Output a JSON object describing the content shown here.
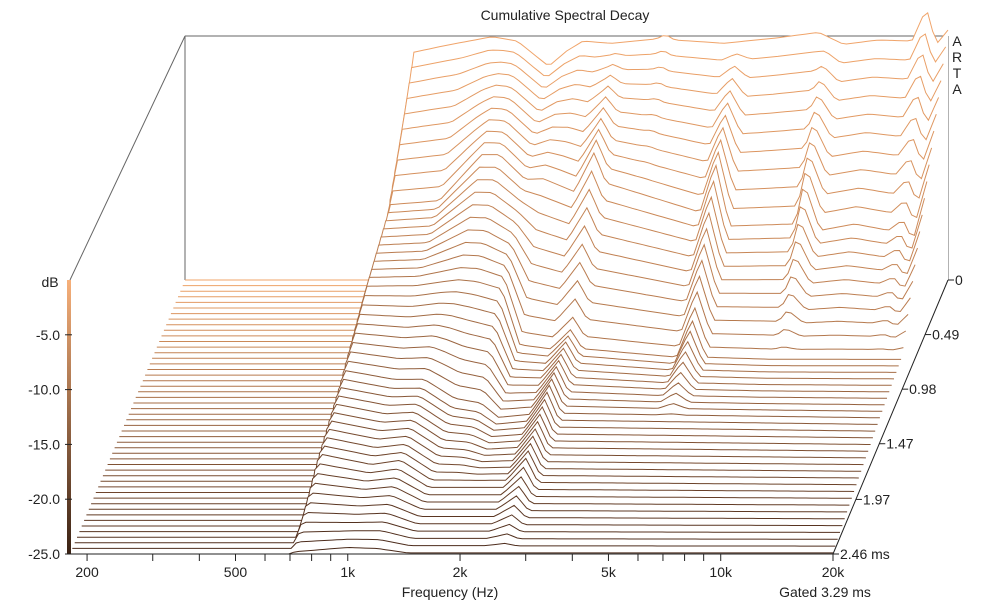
{
  "chart_data": {
    "type": "waterfall",
    "title": "Cumulative Spectral Decay",
    "xlabel": "Frequency (Hz)",
    "ylabel": "dB",
    "zlabel": "",
    "x_scale": "log",
    "xlim": [
      180,
      20000
    ],
    "ylim": [
      -25,
      0
    ],
    "x_ticks": [
      {
        "value": 200,
        "label": "200"
      },
      {
        "value": 500,
        "label": "500"
      },
      {
        "value": 1000,
        "label": "1k"
      },
      {
        "value": 2000,
        "label": "2k"
      },
      {
        "value": 5000,
        "label": "5k"
      },
      {
        "value": 10000,
        "label": "10k"
      },
      {
        "value": 20000,
        "label": "20k"
      }
    ],
    "y_ticks": [
      {
        "value": -5,
        "label": "-5.0"
      },
      {
        "value": -10,
        "label": "-10.0"
      },
      {
        "value": -15,
        "label": "-15.0"
      },
      {
        "value": -20,
        "label": "-20.0"
      },
      {
        "value": -25,
        "label": "-25.0"
      }
    ],
    "time_ticks": [
      {
        "value": 0,
        "label": "0"
      },
      {
        "value": 0.49,
        "label": "0.49"
      },
      {
        "value": 0.98,
        "label": "0.98"
      },
      {
        "value": 1.47,
        "label": "1.47"
      },
      {
        "value": 1.97,
        "label": "1.97"
      },
      {
        "value": 2.46,
        "label": "2.46 ms"
      }
    ],
    "time_range_ms": [
      0,
      2.46
    ],
    "slice_count": 50,
    "gate_text": "Gated 3.29 ms",
    "watermark": "ARTA",
    "colors": {
      "front": "#4a2a1a",
      "back": "#f0a46a",
      "axis": "#222222",
      "frame": "#666666"
    },
    "series": [
      {
        "time_ms": 0,
        "points": [
          [
            700,
            -25
          ],
          [
            720,
            -4.3
          ],
          [
            900,
            -3.6
          ],
          [
            1200,
            -2.8
          ],
          [
            1400,
            -3.2
          ],
          [
            1700,
            -5.5
          ],
          [
            1900,
            -4.1
          ],
          [
            2100,
            -3.2
          ],
          [
            2500,
            -3.4
          ],
          [
            3300,
            -3.0
          ],
          [
            3500,
            -2.6
          ],
          [
            3700,
            -3.1
          ],
          [
            5000,
            -3.4
          ],
          [
            7000,
            -2.9
          ],
          [
            9000,
            -2.4
          ],
          [
            10500,
            -3.5
          ],
          [
            13000,
            -3.1
          ],
          [
            16000,
            -3.2
          ],
          [
            17500,
            -0.2
          ],
          [
            18600,
            -3.5
          ],
          [
            20000,
            -2.2
          ]
        ]
      },
      {
        "time_ms": 0.49,
        "points": [
          [
            700,
            -25
          ],
          [
            720,
            -13.0
          ],
          [
            1000,
            -12.6
          ],
          [
            1300,
            -8.3
          ],
          [
            1450,
            -8.3
          ],
          [
            1700,
            -10.6
          ],
          [
            1900,
            -10.4
          ],
          [
            2300,
            -11.6
          ],
          [
            2600,
            -8.0
          ],
          [
            2800,
            -10.8
          ],
          [
            5000,
            -13.5
          ],
          [
            5500,
            -9.0
          ],
          [
            6000,
            -14.8
          ],
          [
            9000,
            -14.6
          ],
          [
            9500,
            -10.7
          ],
          [
            10500,
            -15.2
          ],
          [
            13000,
            -14.6
          ],
          [
            16000,
            -15.2
          ],
          [
            17500,
            -14.2
          ],
          [
            18600,
            -16.2
          ],
          [
            20000,
            -12.2
          ]
        ]
      },
      {
        "time_ms": 0.98,
        "points": [
          [
            700,
            -25
          ],
          [
            720,
            -15.2
          ],
          [
            1000,
            -15.1
          ],
          [
            1300,
            -14.5
          ],
          [
            1450,
            -14.6
          ],
          [
            1700,
            -15.3
          ],
          [
            1900,
            -20.6
          ],
          [
            2300,
            -21.0
          ],
          [
            2600,
            -19.3
          ],
          [
            2800,
            -21.0
          ],
          [
            5000,
            -21.8
          ],
          [
            5500,
            -18.2
          ],
          [
            6000,
            -21.8
          ],
          [
            9000,
            -22.0
          ],
          [
            10500,
            -22.0
          ],
          [
            20000,
            -22.0
          ]
        ]
      },
      {
        "time_ms": 1.47,
        "points": [
          [
            700,
            -25
          ],
          [
            720,
            -18.5
          ],
          [
            1000,
            -19.4
          ],
          [
            1200,
            -19.4
          ],
          [
            1450,
            -21.2
          ],
          [
            1700,
            -21.6
          ],
          [
            1900,
            -22.8
          ],
          [
            2300,
            -22.5
          ],
          [
            2600,
            -19.8
          ],
          [
            2800,
            -22.4
          ],
          [
            20000,
            -22.8
          ]
        ]
      },
      {
        "time_ms": 1.97,
        "points": [
          [
            700,
            -25
          ],
          [
            720,
            -21.0
          ],
          [
            1000,
            -22.0
          ],
          [
            1200,
            -21.6
          ],
          [
            1450,
            -23.4
          ],
          [
            2300,
            -23.4
          ],
          [
            2600,
            -21.4
          ],
          [
            2800,
            -23.6
          ],
          [
            20000,
            -23.8
          ]
        ]
      },
      {
        "time_ms": 2.46,
        "points": [
          [
            700,
            -25
          ],
          [
            720,
            -24.8
          ],
          [
            1000,
            -24.4
          ],
          [
            1200,
            -24.5
          ],
          [
            1450,
            -24.9
          ],
          [
            20000,
            -24.9
          ]
        ]
      }
    ]
  }
}
